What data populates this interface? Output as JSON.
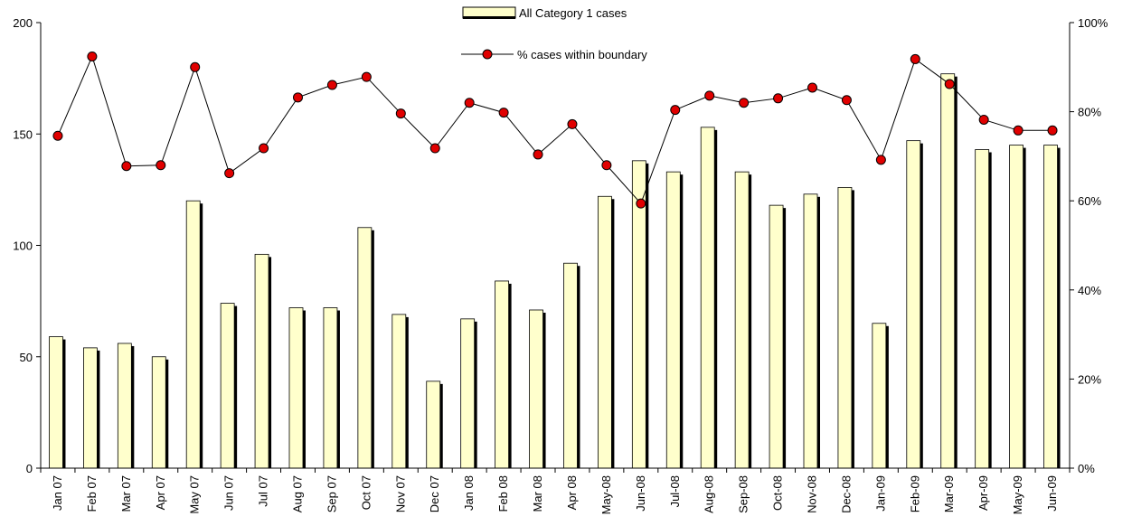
{
  "chart_data": {
    "type": "bar+line",
    "categories": [
      "Jan 07",
      "Feb 07",
      "Mar 07",
      "Apr 07",
      "May 07",
      "Jun 07",
      "Jul 07",
      "Aug 07",
      "Sep 07",
      "Oct 07",
      "Nov 07",
      "Dec 07",
      "Jan 08",
      "Feb 08",
      "Mar 08",
      "Apr 08",
      "May-08",
      "Jun-08",
      "Jul-08",
      "Aug-08",
      "Sep-08",
      "Oct-08",
      "Nov-08",
      "Dec-08",
      "Jan-09",
      "Feb-09",
      "Mar-09",
      "Apr-09",
      "May-09",
      "Jun-09"
    ],
    "series": [
      {
        "name": "All Category 1 cases",
        "type": "bar",
        "axis": "left",
        "color": "#FFFFCC",
        "values": [
          59,
          54,
          56,
          50,
          120,
          74,
          96,
          72,
          72,
          108,
          69,
          39,
          67,
          84,
          71,
          92,
          122,
          138,
          133,
          153,
          133,
          118,
          123,
          126,
          65,
          147,
          177,
          143,
          145,
          145
        ]
      },
      {
        "name": "% cases within boundary",
        "type": "line",
        "axis": "right",
        "color": "#000000",
        "marker_color": "#E00000",
        "values": [
          74.6,
          92.4,
          67.8,
          68.0,
          90.0,
          66.2,
          71.8,
          83.2,
          86.0,
          87.8,
          79.6,
          71.8,
          82.0,
          79.8,
          70.4,
          77.2,
          68.0,
          59.4,
          80.4,
          83.6,
          82.0,
          83.0,
          85.4,
          82.6,
          69.2,
          91.8,
          86.2,
          78.2,
          75.8,
          75.8
        ]
      }
    ],
    "y_left": {
      "min": 0,
      "max": 200,
      "ticks": [
        0,
        50,
        100,
        150,
        200
      ],
      "tick_labels": [
        "0",
        "50",
        "100",
        "150",
        "200"
      ]
    },
    "y_right": {
      "min": 0,
      "max": 100,
      "ticks": [
        0,
        20,
        40,
        60,
        80,
        100
      ],
      "tick_labels": [
        "0%",
        "20%",
        "40%",
        "60%",
        "80%",
        "100%"
      ]
    },
    "grid": false,
    "legend": "top-center"
  }
}
